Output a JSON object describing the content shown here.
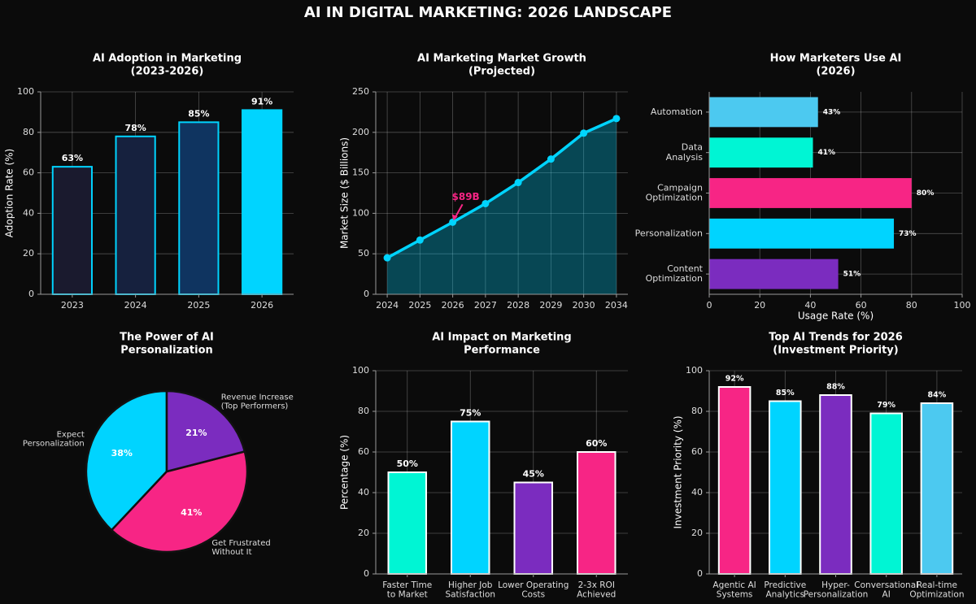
{
  "title": "AI IN DIGITAL MARKETING: 2026 LANDSCAPE",
  "chart_data": [
    {
      "type": "bar",
      "title": [
        "AI Adoption in Marketing",
        "(2023-2026)"
      ],
      "ylabel": "Adoption Rate (%)",
      "categories": [
        [
          "2023"
        ],
        [
          "2024"
        ],
        [
          "2025"
        ],
        [
          "2026"
        ]
      ],
      "values": [
        63,
        78,
        85,
        91
      ],
      "value_labels": [
        "63%",
        "78%",
        "85%",
        "91%"
      ],
      "colors": [
        "#1a1a2e",
        "#16213e",
        "#0f3460",
        "#00d4ff"
      ],
      "edgecolor": "#00d4ff",
      "ylim": [
        0,
        100
      ],
      "yticks": [
        0,
        20,
        40,
        60,
        80,
        100
      ],
      "grid": true
    },
    {
      "type": "area-line",
      "title": [
        "AI Marketing Market Growth",
        "(Projected)"
      ],
      "ylabel": "Market Size ($ Billions)",
      "categories": [
        "2024",
        "2025",
        "2026",
        "2027",
        "2028",
        "2029",
        "2030",
        "2034"
      ],
      "values": [
        45,
        67,
        89,
        112,
        138,
        167,
        199,
        217
      ],
      "color": "#00d4ff",
      "annotation": {
        "text": "$89B",
        "index": 2,
        "color": "#f72585"
      },
      "ylim": [
        0,
        250
      ],
      "yticks": [
        0,
        50,
        100,
        150,
        200,
        250
      ],
      "grid": true
    },
    {
      "type": "hbar",
      "title": [
        "How Marketers Use AI",
        "(2026)"
      ],
      "xlabel": "Usage Rate (%)",
      "categories": [
        [
          "Automation"
        ],
        [
          "Data",
          "Analysis"
        ],
        [
          "Campaign",
          "Optimization"
        ],
        [
          "Personalization"
        ],
        [
          "Content",
          "Optimization"
        ]
      ],
      "values": [
        43,
        41,
        80,
        73,
        51
      ],
      "value_labels": [
        "43%",
        "41%",
        "80%",
        "73%",
        "51%"
      ],
      "colors": [
        "#4cc9f0",
        "#00f5d4",
        "#f72585",
        "#00d4ff",
        "#7b2cbf"
      ],
      "xlim": [
        0,
        100
      ],
      "xticks": [
        0,
        20,
        40,
        60,
        80,
        100
      ],
      "grid": true
    },
    {
      "type": "pie",
      "title": [
        "The Power of AI",
        "Personalization"
      ],
      "categories": [
        [
          "Expect",
          "Personalization"
        ],
        [
          "Get Frustrated",
          "Without It"
        ],
        [
          "Revenue Increase",
          "(Top Performers)"
        ]
      ],
      "values": [
        38,
        41,
        21
      ],
      "value_labels": [
        "38%",
        "41%",
        "21%"
      ],
      "colors": [
        "#00d4ff",
        "#f72585",
        "#7b2cbf"
      ]
    },
    {
      "type": "bar",
      "title": [
        "AI Impact on Marketing",
        "Performance"
      ],
      "ylabel": "Percentage (%)",
      "categories": [
        [
          "Faster Time",
          "to Market"
        ],
        [
          "Higher Job",
          "Satisfaction"
        ],
        [
          "Lower Operating",
          "Costs"
        ],
        [
          "2-3x ROI",
          "Achieved"
        ]
      ],
      "values": [
        50,
        75,
        45,
        60
      ],
      "value_labels": [
        "50%",
        "75%",
        "45%",
        "60%"
      ],
      "colors": [
        "#00f5d4",
        "#00d4ff",
        "#7b2cbf",
        "#f72585"
      ],
      "edgecolor": "#ffffff",
      "ylim": [
        0,
        100
      ],
      "yticks": [
        0,
        20,
        40,
        60,
        80,
        100
      ],
      "grid": true
    },
    {
      "type": "bar",
      "title": [
        "Top AI Trends for 2026",
        "(Investment Priority)"
      ],
      "ylabel": "Investment Priority (%)",
      "categories": [
        [
          "Agentic AI",
          "Systems"
        ],
        [
          "Predictive",
          "Analytics"
        ],
        [
          "Hyper-",
          "Personalization"
        ],
        [
          "Conversational",
          "AI"
        ],
        [
          "Real-time",
          "Optimization"
        ]
      ],
      "values": [
        92,
        85,
        88,
        79,
        84
      ],
      "value_labels": [
        "92%",
        "85%",
        "88%",
        "79%",
        "84%"
      ],
      "colors": [
        "#f72585",
        "#00d4ff",
        "#7b2cbf",
        "#00f5d4",
        "#4cc9f0"
      ],
      "edgecolor": "#ffffff",
      "ylim": [
        0,
        100
      ],
      "yticks": [
        0,
        20,
        40,
        60,
        80,
        100
      ],
      "grid": true
    }
  ]
}
